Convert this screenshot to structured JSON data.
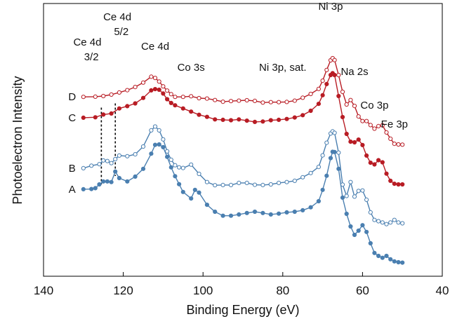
{
  "chart_data": {
    "type": "line",
    "xlabel": "Binding Energy (eV)",
    "ylabel": "Photoelectron Intensity",
    "xlim": [
      140,
      40
    ],
    "x_reversed": true,
    "xticks": [
      140,
      120,
      100,
      80,
      60,
      40
    ],
    "y_ticks_shown": false,
    "grid": false,
    "colors": {
      "red": "#b81c24",
      "blue": "#4a7fb0"
    },
    "series": [
      {
        "name": "D",
        "color": "red",
        "marker": "open-circle",
        "x": [
          130,
          127,
          125,
          123,
          121,
          119,
          117,
          115,
          113,
          112,
          111,
          110,
          109,
          108,
          107,
          105,
          103,
          101,
          99,
          97,
          95,
          93,
          91,
          89,
          87,
          85,
          83,
          81,
          79,
          77,
          75,
          73,
          71,
          70,
          69,
          68,
          67.5,
          67,
          66,
          65,
          64,
          63,
          62,
          61,
          60,
          59,
          58,
          57,
          56,
          55,
          54,
          53,
          52,
          51,
          50
        ],
        "y": [
          0.776,
          0.777,
          0.78,
          0.787,
          0.797,
          0.808,
          0.823,
          0.844,
          0.872,
          0.866,
          0.849,
          0.826,
          0.806,
          0.789,
          0.776,
          0.776,
          0.779,
          0.77,
          0.768,
          0.761,
          0.753,
          0.756,
          0.758,
          0.76,
          0.757,
          0.749,
          0.751,
          0.751,
          0.752,
          0.758,
          0.772,
          0.79,
          0.814,
          0.853,
          0.904,
          0.95,
          0.96,
          0.951,
          0.88,
          0.8,
          0.74,
          0.761,
          0.733,
          0.683,
          0.661,
          0.661,
          0.642,
          0.625,
          0.637,
          0.641,
          0.607,
          0.577,
          0.553,
          0.55,
          0.549
        ]
      },
      {
        "name": "C",
        "color": "red",
        "marker": "filled-circle",
        "x": [
          130,
          127,
          125,
          123,
          121,
          119,
          117,
          115,
          113,
          112,
          111,
          110,
          109,
          108,
          107,
          105,
          103,
          101,
          99,
          97,
          95,
          93,
          91,
          89,
          87,
          85,
          83,
          81,
          79,
          77,
          75,
          73,
          71,
          70,
          69,
          68,
          67.5,
          67,
          66,
          65,
          64,
          63,
          62,
          61,
          60,
          59,
          58,
          57,
          56,
          55,
          54,
          53,
          52,
          51,
          50
        ],
        "y": [
          0.677,
          0.679,
          0.692,
          0.697,
          0.721,
          0.732,
          0.745,
          0.771,
          0.807,
          0.813,
          0.81,
          0.792,
          0.765,
          0.747,
          0.736,
          0.721,
          0.706,
          0.691,
          0.681,
          0.669,
          0.667,
          0.665,
          0.669,
          0.663,
          0.657,
          0.659,
          0.665,
          0.667,
          0.671,
          0.678,
          0.689,
          0.71,
          0.743,
          0.784,
          0.837,
          0.88,
          0.889,
          0.88,
          0.78,
          0.68,
          0.6,
          0.563,
          0.56,
          0.573,
          0.547,
          0.497,
          0.463,
          0.455,
          0.475,
          0.465,
          0.411,
          0.377,
          0.363,
          0.36,
          0.36
        ]
      },
      {
        "name": "B",
        "color": "blue",
        "marker": "open-circle",
        "x": [
          130,
          128,
          126,
          125,
          124,
          123,
          122,
          121,
          119,
          117,
          115,
          113,
          112,
          111,
          110,
          109,
          108,
          107,
          106,
          105,
          103,
          101,
          99,
          97,
          95,
          93,
          91,
          89,
          87,
          85,
          83,
          81,
          79,
          77,
          75,
          73,
          71,
          70,
          69,
          68,
          67.5,
          67,
          66,
          65,
          64,
          63,
          62,
          61,
          60,
          59,
          58,
          57,
          56,
          55,
          54,
          53,
          52,
          51,
          50
        ],
        "y": [
          0.437,
          0.449,
          0.456,
          0.474,
          0.471,
          0.461,
          0.48,
          0.497,
          0.494,
          0.503,
          0.54,
          0.617,
          0.635,
          0.617,
          0.574,
          0.517,
          0.477,
          0.451,
          0.441,
          0.438,
          0.454,
          0.41,
          0.371,
          0.356,
          0.357,
          0.357,
          0.367,
          0.367,
          0.358,
          0.357,
          0.36,
          0.367,
          0.371,
          0.377,
          0.394,
          0.414,
          0.443,
          0.498,
          0.558,
          0.602,
          0.612,
          0.605,
          0.511,
          0.359,
          0.305,
          0.371,
          0.302,
          0.329,
          0.331,
          0.287,
          0.227,
          0.191,
          0.185,
          0.179,
          0.171,
          0.179,
          0.191,
          0.179,
          0.175
        ]
      },
      {
        "name": "A",
        "color": "blue",
        "marker": "filled-circle",
        "x": [
          130,
          128,
          127,
          126,
          125,
          124,
          123,
          122,
          121,
          119,
          117,
          115,
          113,
          112,
          111,
          110,
          109,
          108,
          107,
          106,
          105,
          103,
          102,
          101,
          99,
          97,
          95,
          93,
          91,
          89,
          87,
          85,
          83,
          81,
          79,
          77,
          75,
          73,
          71,
          70,
          69,
          68,
          67.5,
          67,
          66,
          65,
          64,
          63,
          62,
          61,
          60,
          59,
          58,
          57,
          56,
          55,
          54,
          53,
          52,
          51,
          50
        ],
        "y": [
          0.337,
          0.338,
          0.342,
          0.36,
          0.374,
          0.374,
          0.371,
          0.421,
          0.39,
          0.374,
          0.397,
          0.434,
          0.506,
          0.548,
          0.55,
          0.537,
          0.491,
          0.441,
          0.399,
          0.361,
          0.324,
          0.293,
          0.334,
          0.321,
          0.263,
          0.23,
          0.211,
          0.211,
          0.217,
          0.224,
          0.23,
          0.224,
          0.217,
          0.221,
          0.227,
          0.23,
          0.237,
          0.251,
          0.28,
          0.334,
          0.401,
          0.485,
          0.515,
          0.514,
          0.434,
          0.297,
          0.22,
          0.16,
          0.12,
          0.14,
          0.166,
          0.134,
          0.08,
          0.034,
          0.02,
          0.011,
          0.02,
          0.004,
          -0.006,
          -0.01,
          -0.012
        ]
      }
    ],
    "vertical_markers": [
      {
        "x": 125.5,
        "y_from": 0.36,
        "y_to": 0.725,
        "style": "dotted"
      },
      {
        "x": 122.0,
        "y_from": 0.4,
        "y_to": 0.745,
        "style": "dotted"
      }
    ],
    "annotations": [
      {
        "text": "Ce 4d",
        "x": 129.0,
        "y": 1.02
      },
      {
        "text": "3/2",
        "x": 128.0,
        "y": 0.95
      },
      {
        "text": "Ce 4d",
        "x": 121.5,
        "y": 1.14
      },
      {
        "text": "5/2",
        "x": 120.5,
        "y": 1.07
      },
      {
        "text": "Ce 4d",
        "x": 112.0,
        "y": 1.0
      },
      {
        "text": "Co 3s",
        "x": 103.0,
        "y": 0.9
      },
      {
        "text": "Ni 3p, sat.",
        "x": 80.0,
        "y": 0.9
      },
      {
        "text": "Ni 3p",
        "x": 68.0,
        "y": 1.19
      },
      {
        "text": "Na 2s",
        "x": 62.0,
        "y": 0.88
      },
      {
        "text": "Co 3p",
        "x": 57.0,
        "y": 0.72
      },
      {
        "text": "Fe 3p",
        "x": 52.0,
        "y": 0.63
      }
    ]
  }
}
